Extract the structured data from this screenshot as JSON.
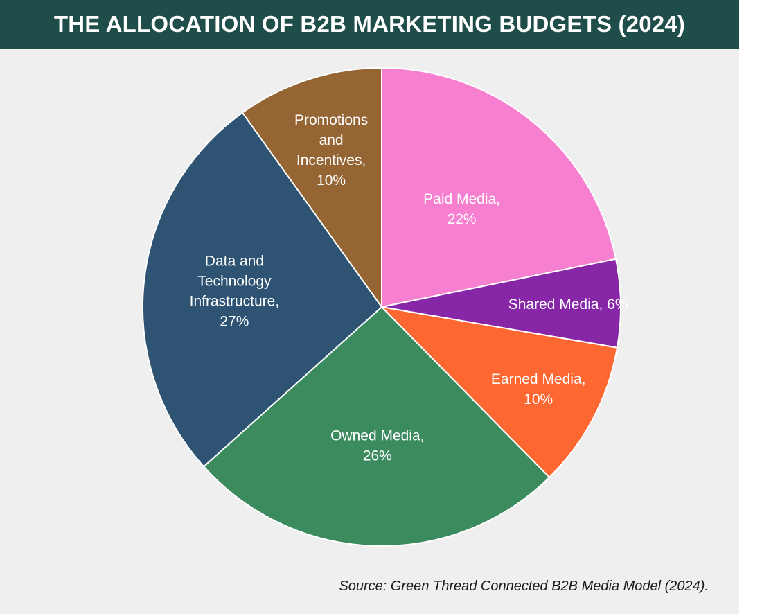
{
  "title": "THE ALLOCATION OF B2B MARKETING BUDGETS (2024)",
  "source": "Source: Green Thread Connected B2B Media Model (2024).",
  "chart_data": {
    "type": "pie",
    "title": "THE ALLOCATION OF B2B MARKETING BUDGETS (2024)",
    "start_angle_deg": 0,
    "direction": "clockwise",
    "slices": [
      {
        "name": "Paid Media",
        "value": 22,
        "label_lines": [
          "Paid Media,",
          "22%"
        ],
        "color": "#f77fcf"
      },
      {
        "name": "Shared Media",
        "value": 6,
        "label_lines": [
          "Shared Media, 6%"
        ],
        "color": "#8727a8"
      },
      {
        "name": "Earned Media",
        "value": 10,
        "label_lines": [
          "Earned Media,",
          "10%"
        ],
        "color": "#fd6731"
      },
      {
        "name": "Owned Media",
        "value": 26,
        "label_lines": [
          "Owned Media,",
          "26%"
        ],
        "color": "#3b8b5f"
      },
      {
        "name": "Data and Technology Infrastructure",
        "value": 27,
        "label_lines": [
          "Data and",
          "Technology",
          "Infrastructure,",
          "27%"
        ],
        "color": "#2e5373"
      },
      {
        "name": "Promotions and Incentives",
        "value": 10,
        "label_lines": [
          "Promotions",
          "and",
          "Incentives,",
          "10%"
        ],
        "color": "#956533"
      }
    ]
  },
  "colors": {
    "header_background": "#1f4d4a",
    "panel_background": "#efefef",
    "slice_border": "#ffffff",
    "label_text": "#ffffff"
  }
}
